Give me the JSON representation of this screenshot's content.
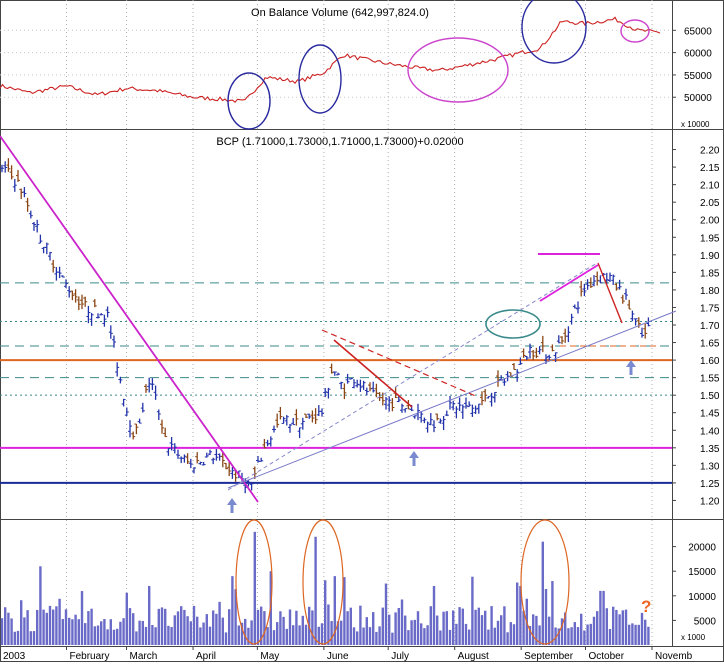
{
  "chart_data": [
    {
      "type": "line",
      "title": "On Balance Volume (642,997,824.0)",
      "scale_note": "x 10000",
      "ylim": [
        44000,
        70000
      ],
      "yticks": [
        50000,
        55000,
        60000,
        65000
      ],
      "colors": {
        "line": "#cc2222",
        "circle_blue": "#2a2aa0",
        "circle_magenta": "#cc44cc"
      },
      "series": [
        {
          "x": [
            "2003-01-02",
            "2003-01-15",
            "2003-02-01",
            "2003-02-15",
            "2003-03-01",
            "2003-03-15",
            "2003-04-01",
            "2003-04-15",
            "2003-04-25",
            "2003-05-05",
            "2003-05-20",
            "2003-06-01",
            "2003-06-10",
            "2003-06-20",
            "2003-07-01",
            "2003-07-15",
            "2003-07-25",
            "2003-08-05",
            "2003-08-20",
            "2003-09-01",
            "2003-09-10",
            "2003-09-20",
            "2003-10-01",
            "2003-10-15",
            "2003-10-25",
            "2003-11-05"
          ],
          "values": [
            52500,
            51000,
            52500,
            50500,
            52000,
            51500,
            50000,
            49500,
            49000,
            54500,
            53500,
            55500,
            59500,
            58500,
            57500,
            56500,
            56000,
            57000,
            58500,
            60000,
            61000,
            67000,
            66500,
            67500,
            65000,
            64500
          ]
        }
      ]
    },
    {
      "type": "ohlc",
      "title": "BCP (1.71000,1.73000,1.71000,1.73000)+0.02000",
      "x_tick_labels": [
        "2003",
        "February",
        "March",
        "April",
        "May",
        "June",
        "July",
        "August",
        "September",
        "October",
        "Novemb"
      ],
      "ylim": [
        1.15,
        2.25
      ],
      "yticks": [
        1.2,
        1.25,
        1.3,
        1.35,
        1.4,
        1.45,
        1.5,
        1.55,
        1.6,
        1.65,
        1.7,
        1.75,
        1.8,
        1.85,
        1.9,
        1.95,
        2.0,
        2.05,
        2.1,
        2.15,
        2.2
      ],
      "colors": {
        "bar": "#2233aa",
        "down_bar": "#8b4513",
        "trend_magenta": "#cc22cc",
        "support_navy": "#1a2a99",
        "resistance_orange": "#dd6622",
        "grid_teal": "#3a8a8a"
      },
      "horizontal_levels": [
        {
          "y": 1.25,
          "style": "solid",
          "color": "#1a2a99"
        },
        {
          "y": 1.35,
          "style": "solid",
          "color": "#dd22dd"
        },
        {
          "y": 1.6,
          "style": "solid",
          "color": "#dd6622"
        },
        {
          "y": 1.55,
          "style": "dashed",
          "color": "#3a8a8a"
        },
        {
          "y": 1.5,
          "style": "dotted",
          "color": "#3a8a8a"
        },
        {
          "y": 1.64,
          "style": "dashed",
          "color": "#3a8a8a"
        },
        {
          "y": 1.71,
          "style": "dotted",
          "color": "#3a8a8a"
        },
        {
          "y": 1.82,
          "style": "dashed",
          "color": "#3a8a8a"
        }
      ],
      "series": [
        {
          "name": "BCP",
          "x": [
            "2003-01-02",
            "2003-01-10",
            "2003-01-20",
            "2003-01-31",
            "2003-02-10",
            "2003-02-20",
            "2003-03-01",
            "2003-03-05",
            "2003-03-12",
            "2003-03-20",
            "2003-03-31",
            "2003-04-10",
            "2003-04-20",
            "2003-04-28",
            "2003-05-05",
            "2003-05-12",
            "2003-05-20",
            "2003-05-31",
            "2003-06-05",
            "2003-06-10",
            "2003-06-15",
            "2003-06-25",
            "2003-07-05",
            "2003-07-15",
            "2003-07-22",
            "2003-07-31",
            "2003-08-10",
            "2003-08-20",
            "2003-08-31",
            "2003-09-05",
            "2003-09-15",
            "2003-09-20",
            "2003-09-30",
            "2003-10-05",
            "2003-10-12",
            "2003-10-20",
            "2003-10-28",
            "2003-11-03"
          ],
          "close": [
            2.15,
            2.1,
            1.95,
            1.82,
            1.75,
            1.73,
            1.46,
            1.38,
            1.55,
            1.36,
            1.3,
            1.33,
            1.28,
            1.24,
            1.36,
            1.43,
            1.42,
            1.45,
            1.58,
            1.52,
            1.55,
            1.49,
            1.48,
            1.45,
            1.42,
            1.47,
            1.46,
            1.52,
            1.58,
            1.63,
            1.62,
            1.65,
            1.8,
            1.83,
            1.84,
            1.77,
            1.66,
            1.73
          ]
        }
      ]
    },
    {
      "type": "bar",
      "title": "",
      "scale_note": "x 1000",
      "ylim": [
        0,
        25000
      ],
      "yticks": [
        5000,
        10000,
        15000,
        20000
      ],
      "annotation": "?",
      "colors": {
        "bar": "#6a6ac8",
        "ellipse": "#dd6622",
        "annotation": "#ee6622"
      }
    }
  ]
}
